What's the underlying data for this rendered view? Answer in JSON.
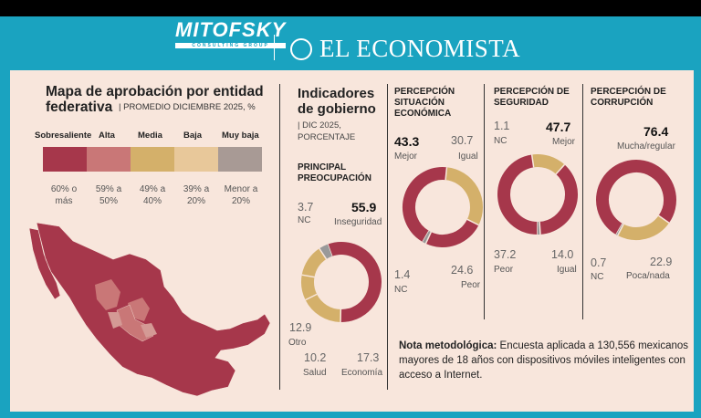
{
  "branding": {
    "left_logo": "MITOFSKY",
    "left_logo_sub": "CONSULTING GROUP",
    "right_logo": "EL ECONOMISTA"
  },
  "map": {
    "title": "Mapa de aprobación por entidad federativa",
    "subtitle": "PROMEDIO DICIEMBRE 2025, %",
    "legend": [
      {
        "label": "Sobresaliente",
        "range": "60% o más",
        "color": "#a6374b"
      },
      {
        "label": "Alta",
        "range": "59% a 50%",
        "color": "#c97777"
      },
      {
        "label": "Media",
        "range": "49% a 40%",
        "color": "#d4b06a"
      },
      {
        "label": "Baja",
        "range": "39% a 20%",
        "color": "#e8c89a"
      },
      {
        "label": "Muy baja",
        "range": "Menor a 20%",
        "color": "#a89a95"
      }
    ]
  },
  "indicators": {
    "title": "Indicadores de gobierno",
    "subtitle": "DIC 2025, PORCENTAJE"
  },
  "colors": {
    "primary": "#a6374b",
    "secondary": "#d4b06a",
    "nc": "#999999"
  },
  "chart_data": [
    {
      "type": "pie",
      "title": "PRINCIPAL PREOCUPACIÓN",
      "categories": [
        "Inseguridad",
        "Economía",
        "Salud",
        "Otro",
        "NC"
      ],
      "values": [
        55.9,
        17.3,
        10.2,
        12.9,
        3.7
      ],
      "value_labels": [
        "55.9",
        "17.3",
        "10.2",
        "12.9",
        "3.7"
      ]
    },
    {
      "type": "pie",
      "title": "PERCEPCIÓN SITUACIÓN ECONÓMICA",
      "categories": [
        "Mejor",
        "Igual",
        "Peor",
        "NC"
      ],
      "values": [
        43.3,
        30.7,
        24.6,
        1.4
      ],
      "value_labels": [
        "43.3",
        "30.7",
        "24.6",
        "1.4"
      ]
    },
    {
      "type": "pie",
      "title": "PERCEPCIÓN DE SEGURIDAD",
      "categories": [
        "Mejor",
        "Igual",
        "Peor",
        "NC"
      ],
      "values": [
        47.7,
        14.0,
        37.2,
        1.1
      ],
      "value_labels": [
        "47.7",
        "14.0",
        "37.2",
        "1.1"
      ]
    },
    {
      "type": "pie",
      "title": "PERCEPCIÓN DE CORRUPCIÓN",
      "categories": [
        "Mucha/regular",
        "Poca/nada",
        "NC"
      ],
      "values": [
        76.4,
        22.9,
        0.7
      ],
      "value_labels": [
        "76.4",
        "22.9",
        "0.7"
      ]
    }
  ],
  "note": {
    "label": "Nota metodológica:",
    "text": "Encuesta aplicada a 130,556 mexicanos mayores de 18 años con dispositivos móviles inteligentes con acceso a Internet."
  }
}
